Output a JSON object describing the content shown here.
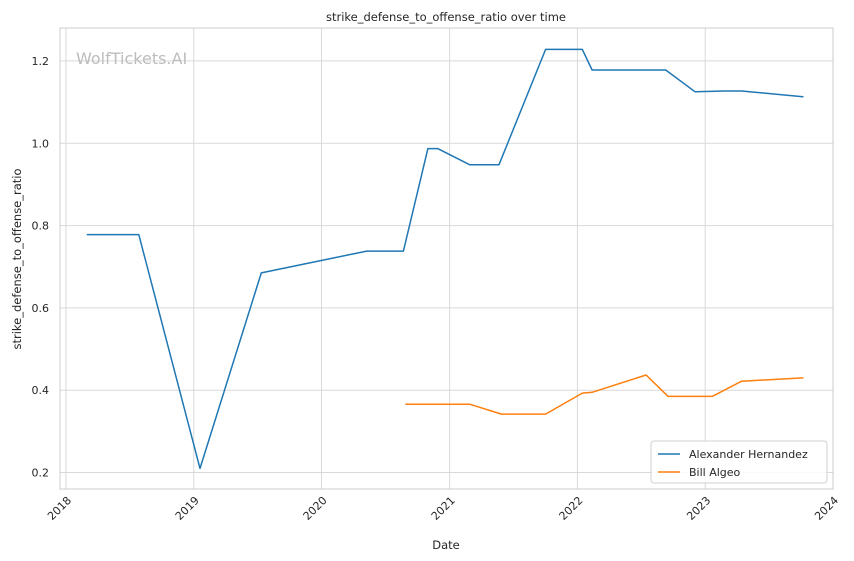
{
  "chart_data": {
    "type": "line",
    "title": "strike_defense_to_offense_ratio over time",
    "xlabel": "Date",
    "ylabel": "strike_defense_to_offense_ratio",
    "watermark": "WolfTickets.AI",
    "xlim": [
      "2017-12-15",
      "2024-01-01"
    ],
    "ylim": [
      0.16,
      1.28
    ],
    "x_ticks": [
      "2018",
      "2019",
      "2020",
      "2021",
      "2022",
      "2023",
      "2024"
    ],
    "y_ticks": [
      0.2,
      0.4,
      0.6,
      0.8,
      1.0,
      1.2
    ],
    "y_tick_labels": [
      "0.2",
      "0.4",
      "0.6",
      "0.8",
      "1.0",
      "1.2"
    ],
    "grid": true,
    "legend_position": "bottom-right",
    "series": [
      {
        "name": "Alexander Hernandez",
        "color": "#1f77b4",
        "points": [
          [
            "2018-03-03",
            0.778
          ],
          [
            "2018-07-28",
            0.778
          ],
          [
            "2019-01-19",
            0.21
          ],
          [
            "2019-07-13",
            0.685
          ],
          [
            "2020-05-09",
            0.738
          ],
          [
            "2020-08-22",
            0.738
          ],
          [
            "2020-10-31",
            0.987
          ],
          [
            "2020-11-28",
            0.987
          ],
          [
            "2021-02-27",
            0.948
          ],
          [
            "2021-05-22",
            0.948
          ],
          [
            "2021-10-02",
            1.228
          ],
          [
            "2022-01-15",
            1.228
          ],
          [
            "2022-02-12",
            1.178
          ],
          [
            "2022-09-10",
            1.178
          ],
          [
            "2022-12-03",
            1.125
          ],
          [
            "2023-02-25",
            1.127
          ],
          [
            "2023-04-15",
            1.127
          ],
          [
            "2023-10-07",
            1.113
          ]
        ]
      },
      {
        "name": "Bill Algeo",
        "color": "#ff7f0e",
        "points": [
          [
            "2020-08-29",
            0.366
          ],
          [
            "2021-02-27",
            0.366
          ],
          [
            "2021-05-29",
            0.342
          ],
          [
            "2021-10-02",
            0.342
          ],
          [
            "2022-01-15",
            0.393
          ],
          [
            "2022-02-12",
            0.395
          ],
          [
            "2022-07-16",
            0.437
          ],
          [
            "2022-09-17",
            0.385
          ],
          [
            "2023-01-21",
            0.385
          ],
          [
            "2023-04-15",
            0.422
          ],
          [
            "2023-10-07",
            0.43
          ]
        ]
      }
    ]
  }
}
